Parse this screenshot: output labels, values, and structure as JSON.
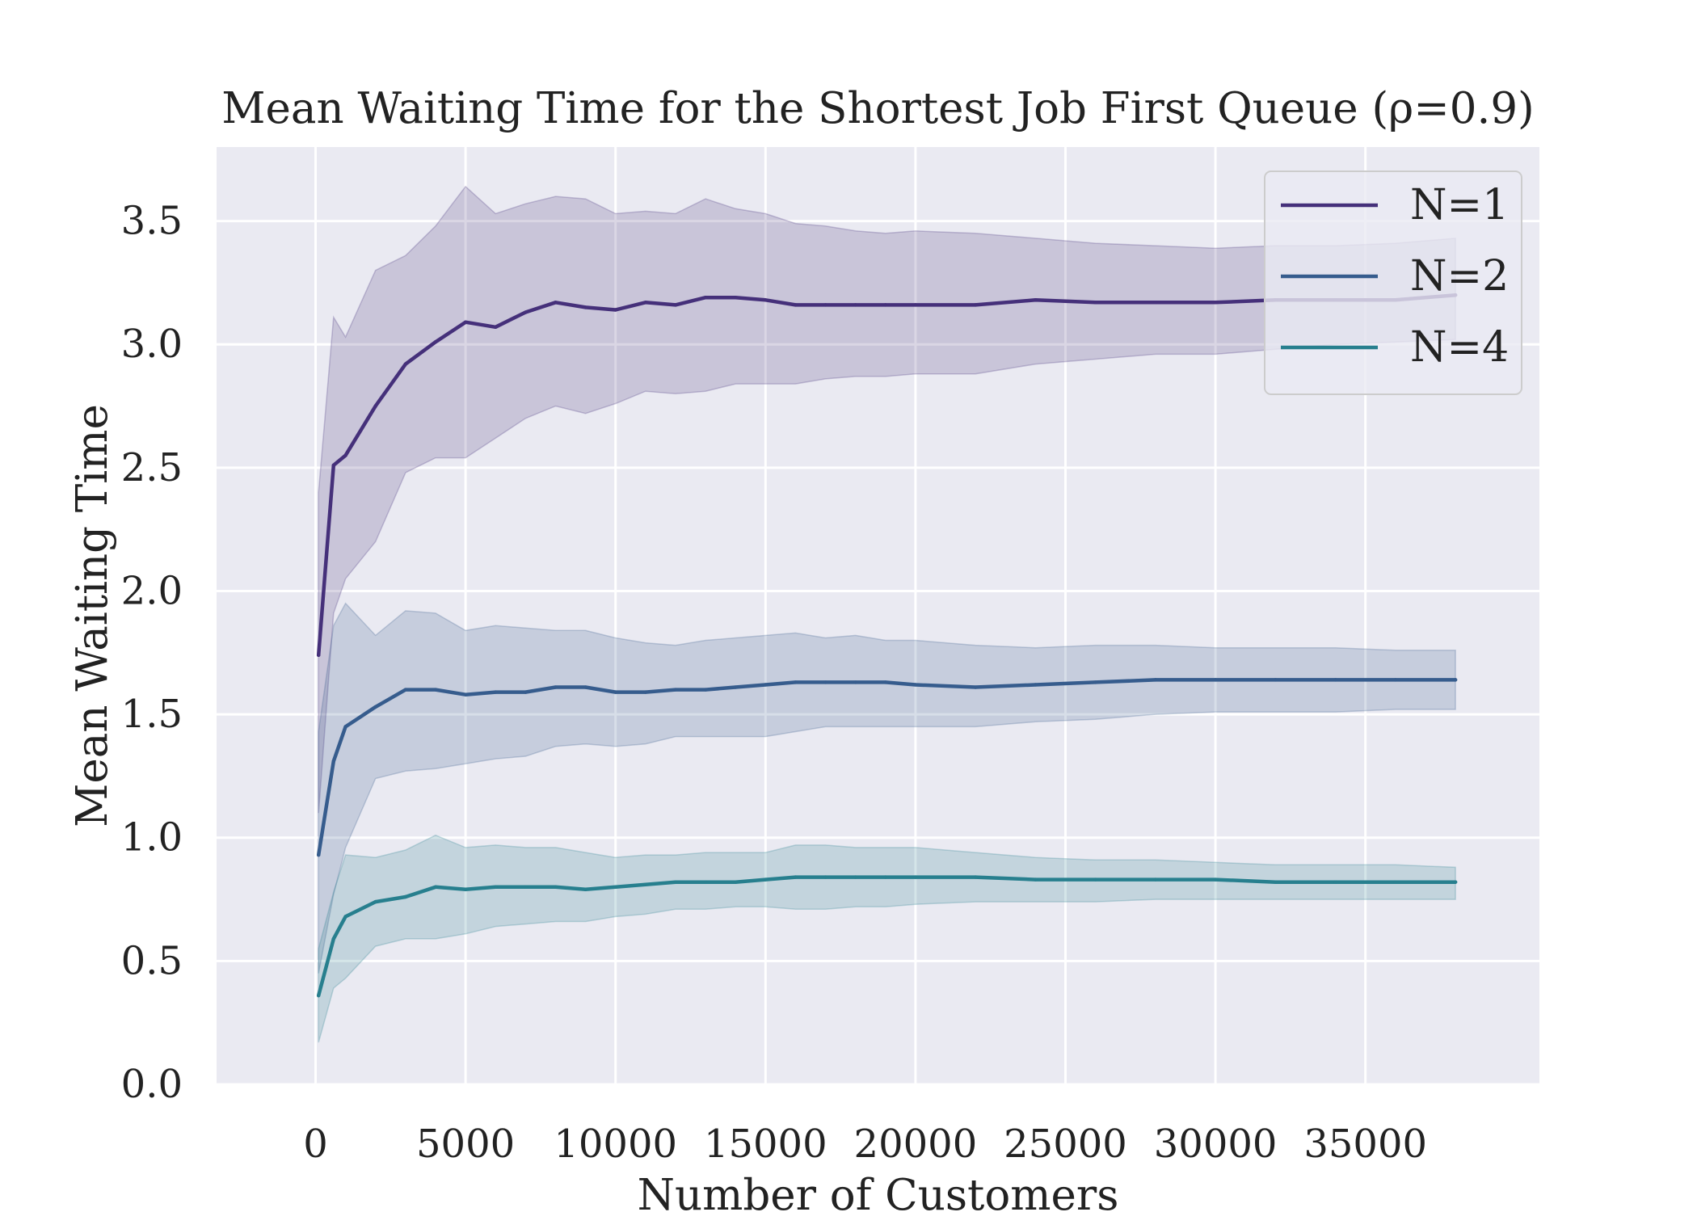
{
  "chart_data": {
    "type": "line",
    "title": "Mean Waiting Time for the Shortest Job First Queue (ρ=0.9)",
    "xlabel": "Number of Customers",
    "ylabel": "Mean Waiting Time",
    "xlim": [
      -3300,
      40800
    ],
    "ylim": [
      0.0,
      3.8
    ],
    "xticks": [
      0,
      5000,
      10000,
      15000,
      20000,
      25000,
      30000,
      35000
    ],
    "xtick_labels": [
      "0",
      "5000",
      "10000",
      "15000",
      "20000",
      "25000",
      "30000",
      "35000"
    ],
    "yticks": [
      0.0,
      0.5,
      1.0,
      1.5,
      2.0,
      2.5,
      3.0,
      3.5
    ],
    "ytick_labels": [
      "0.0",
      "0.5",
      "1.0",
      "1.5",
      "2.0",
      "2.5",
      "3.0",
      "3.5"
    ],
    "grid": true,
    "legend_position": "top-right",
    "background": "#eaeaf2",
    "series": [
      {
        "name": "N=1",
        "color": "#45307a",
        "x": [
          100,
          600,
          1000,
          2000,
          3000,
          4000,
          5000,
          6000,
          7000,
          8000,
          9000,
          10000,
          11000,
          12000,
          13000,
          14000,
          15000,
          16000,
          17000,
          18000,
          19000,
          20000,
          22000,
          24000,
          26000,
          28000,
          30000,
          32000,
          34000,
          36000,
          38000
        ],
        "y": [
          1.74,
          2.51,
          2.55,
          2.75,
          2.92,
          3.01,
          3.09,
          3.07,
          3.13,
          3.17,
          3.15,
          3.14,
          3.17,
          3.16,
          3.19,
          3.19,
          3.18,
          3.16,
          3.16,
          3.16,
          3.16,
          3.16,
          3.16,
          3.18,
          3.17,
          3.17,
          3.17,
          3.18,
          3.18,
          3.18,
          3.2
        ],
        "lower": [
          1.1,
          1.91,
          2.05,
          2.2,
          2.48,
          2.54,
          2.54,
          2.62,
          2.7,
          2.75,
          2.72,
          2.76,
          2.81,
          2.8,
          2.81,
          2.84,
          2.84,
          2.84,
          2.86,
          2.87,
          2.87,
          2.88,
          2.88,
          2.92,
          2.94,
          2.96,
          2.96,
          2.98,
          3.0,
          3.01,
          3.02
        ],
        "upper": [
          2.4,
          3.11,
          3.03,
          3.3,
          3.36,
          3.48,
          3.64,
          3.53,
          3.57,
          3.6,
          3.59,
          3.53,
          3.54,
          3.53,
          3.59,
          3.55,
          3.53,
          3.49,
          3.48,
          3.46,
          3.45,
          3.46,
          3.45,
          3.43,
          3.41,
          3.4,
          3.39,
          3.4,
          3.4,
          3.41,
          3.43
        ]
      },
      {
        "name": "N=2",
        "color": "#365c8d",
        "x": [
          100,
          600,
          1000,
          2000,
          3000,
          4000,
          5000,
          6000,
          7000,
          8000,
          9000,
          10000,
          11000,
          12000,
          13000,
          14000,
          15000,
          16000,
          17000,
          18000,
          19000,
          20000,
          22000,
          24000,
          26000,
          28000,
          30000,
          32000,
          34000,
          36000,
          38000
        ],
        "y": [
          0.93,
          1.31,
          1.45,
          1.53,
          1.6,
          1.6,
          1.58,
          1.59,
          1.59,
          1.61,
          1.61,
          1.59,
          1.59,
          1.6,
          1.6,
          1.61,
          1.62,
          1.63,
          1.63,
          1.63,
          1.63,
          1.62,
          1.61,
          1.62,
          1.63,
          1.64,
          1.64,
          1.64,
          1.64,
          1.64,
          1.64
        ],
        "lower": [
          0.45,
          0.77,
          0.96,
          1.24,
          1.27,
          1.28,
          1.3,
          1.32,
          1.33,
          1.37,
          1.38,
          1.37,
          1.38,
          1.41,
          1.41,
          1.41,
          1.41,
          1.43,
          1.45,
          1.45,
          1.45,
          1.45,
          1.45,
          1.47,
          1.48,
          1.5,
          1.51,
          1.51,
          1.51,
          1.52,
          1.52
        ],
        "upper": [
          1.43,
          1.86,
          1.95,
          1.82,
          1.92,
          1.91,
          1.84,
          1.86,
          1.85,
          1.84,
          1.84,
          1.81,
          1.79,
          1.78,
          1.8,
          1.81,
          1.82,
          1.83,
          1.81,
          1.82,
          1.8,
          1.8,
          1.78,
          1.77,
          1.78,
          1.78,
          1.77,
          1.77,
          1.77,
          1.76,
          1.76
        ]
      },
      {
        "name": "N=4",
        "color": "#277f8e",
        "x": [
          100,
          600,
          1000,
          2000,
          3000,
          4000,
          5000,
          6000,
          7000,
          8000,
          9000,
          10000,
          11000,
          12000,
          13000,
          14000,
          15000,
          16000,
          17000,
          18000,
          19000,
          20000,
          22000,
          24000,
          26000,
          28000,
          30000,
          32000,
          34000,
          36000,
          38000
        ],
        "y": [
          0.36,
          0.59,
          0.68,
          0.74,
          0.76,
          0.8,
          0.79,
          0.8,
          0.8,
          0.8,
          0.79,
          0.8,
          0.81,
          0.82,
          0.82,
          0.82,
          0.83,
          0.84,
          0.84,
          0.84,
          0.84,
          0.84,
          0.84,
          0.83,
          0.83,
          0.83,
          0.83,
          0.82,
          0.82,
          0.82,
          0.82
        ],
        "lower": [
          0.17,
          0.39,
          0.43,
          0.56,
          0.59,
          0.59,
          0.61,
          0.64,
          0.65,
          0.66,
          0.66,
          0.68,
          0.69,
          0.71,
          0.71,
          0.72,
          0.72,
          0.71,
          0.71,
          0.72,
          0.72,
          0.73,
          0.74,
          0.74,
          0.74,
          0.75,
          0.75,
          0.75,
          0.75,
          0.75,
          0.75
        ],
        "upper": [
          0.55,
          0.78,
          0.93,
          0.92,
          0.95,
          1.01,
          0.96,
          0.97,
          0.96,
          0.96,
          0.94,
          0.92,
          0.93,
          0.93,
          0.94,
          0.94,
          0.94,
          0.97,
          0.97,
          0.96,
          0.96,
          0.96,
          0.94,
          0.92,
          0.91,
          0.91,
          0.9,
          0.89,
          0.89,
          0.89,
          0.88
        ]
      }
    ]
  }
}
